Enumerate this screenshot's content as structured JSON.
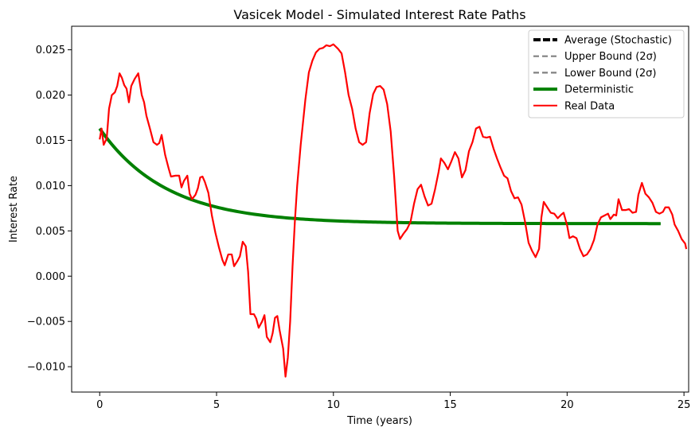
{
  "chart_data": {
    "type": "line",
    "title": "Vasicek Model - Simulated Interest Rate Paths",
    "xlabel": "Time (years)",
    "ylabel": "Interest Rate",
    "xlim": [
      -1.2,
      25.2
    ],
    "ylim": [
      -0.0128,
      0.0276
    ],
    "xticks": [
      0,
      5,
      10,
      15,
      20,
      25
    ],
    "xtick_labels": [
      "0",
      "5",
      "10",
      "15",
      "20",
      "25"
    ],
    "yticks": [
      -0.01,
      -0.005,
      0.0,
      0.005,
      0.01,
      0.015,
      0.02,
      0.025
    ],
    "ytick_labels": [
      "−0.010",
      "−0.005",
      "0.000",
      "0.005",
      "0.010",
      "0.015",
      "0.020",
      "0.025"
    ],
    "grid": false,
    "legend_position": "top-right",
    "deterministic": {
      "r0": 0.0163,
      "theta": 0.0058,
      "kappa": 0.35,
      "t_end": 24
    },
    "series": [
      {
        "name": "Average (Stochastic)",
        "color": "#000000",
        "style": "dashed",
        "role": "average"
      },
      {
        "name": "Upper Bound (2σ)",
        "color": "#808080",
        "style": "dashed",
        "role": "upper"
      },
      {
        "name": "Lower Bound (2σ)",
        "color": "#808080",
        "style": "dashed",
        "role": "lower"
      },
      {
        "name": "Deterministic",
        "color": "#008000",
        "style": "solid",
        "role": "deterministic"
      },
      {
        "name": "Real Data",
        "color": "#ff0000",
        "style": "solid",
        "role": "data",
        "points": [
          [
            0.0,
            0.0151
          ],
          [
            0.08,
            0.0163
          ],
          [
            0.17,
            0.0145
          ],
          [
            0.3,
            0.0152
          ],
          [
            0.4,
            0.0185
          ],
          [
            0.52,
            0.02
          ],
          [
            0.65,
            0.0203
          ],
          [
            0.75,
            0.021
          ],
          [
            0.85,
            0.0224
          ],
          [
            0.95,
            0.0219
          ],
          [
            1.05,
            0.0211
          ],
          [
            1.15,
            0.0207
          ],
          [
            1.25,
            0.0192
          ],
          [
            1.35,
            0.021
          ],
          [
            1.5,
            0.0218
          ],
          [
            1.65,
            0.0224
          ],
          [
            1.8,
            0.02
          ],
          [
            1.9,
            0.0192
          ],
          [
            2.0,
            0.0177
          ],
          [
            2.15,
            0.0163
          ],
          [
            2.3,
            0.0148
          ],
          [
            2.45,
            0.0145
          ],
          [
            2.55,
            0.0147
          ],
          [
            2.65,
            0.0156
          ],
          [
            2.8,
            0.0134
          ],
          [
            2.95,
            0.0119
          ],
          [
            3.05,
            0.011
          ],
          [
            3.25,
            0.0111
          ],
          [
            3.4,
            0.0111
          ],
          [
            3.5,
            0.0098
          ],
          [
            3.6,
            0.0105
          ],
          [
            3.75,
            0.0111
          ],
          [
            3.85,
            0.0091
          ],
          [
            3.95,
            0.0085
          ],
          [
            4.1,
            0.009
          ],
          [
            4.2,
            0.0097
          ],
          [
            4.3,
            0.0109
          ],
          [
            4.4,
            0.011
          ],
          [
            4.5,
            0.0104
          ],
          [
            4.65,
            0.0092
          ],
          [
            4.8,
            0.0067
          ],
          [
            4.95,
            0.0048
          ],
          [
            5.1,
            0.0032
          ],
          [
            5.25,
            0.0018
          ],
          [
            5.35,
            0.0012
          ],
          [
            5.5,
            0.0024
          ],
          [
            5.65,
            0.0024
          ],
          [
            5.75,
            0.0011
          ],
          [
            5.9,
            0.0017
          ],
          [
            6.0,
            0.0022
          ],
          [
            6.12,
            0.0038
          ],
          [
            6.25,
            0.0033
          ],
          [
            6.35,
            0.0005
          ],
          [
            6.45,
            -0.0042
          ],
          [
            6.6,
            -0.0042
          ],
          [
            6.7,
            -0.0047
          ],
          [
            6.8,
            -0.0057
          ],
          [
            6.95,
            -0.005
          ],
          [
            7.05,
            -0.0043
          ],
          [
            7.15,
            -0.0067
          ],
          [
            7.3,
            -0.0073
          ],
          [
            7.4,
            -0.0063
          ],
          [
            7.5,
            -0.0046
          ],
          [
            7.6,
            -0.0044
          ],
          [
            7.7,
            -0.006
          ],
          [
            7.85,
            -0.008
          ],
          [
            7.95,
            -0.0111
          ],
          [
            8.05,
            -0.009
          ],
          [
            8.15,
            -0.005
          ],
          [
            8.25,
            0.001
          ],
          [
            8.35,
            0.006
          ],
          [
            8.45,
            0.01
          ],
          [
            8.6,
            0.0145
          ],
          [
            8.8,
            0.0195
          ],
          [
            8.95,
            0.0225
          ],
          [
            9.1,
            0.0238
          ],
          [
            9.25,
            0.0247
          ],
          [
            9.4,
            0.0251
          ],
          [
            9.55,
            0.0252
          ],
          [
            9.7,
            0.0255
          ],
          [
            9.85,
            0.0254
          ],
          [
            10.0,
            0.0256
          ],
          [
            10.2,
            0.0251
          ],
          [
            10.35,
            0.0246
          ],
          [
            10.5,
            0.0225
          ],
          [
            10.65,
            0.02
          ],
          [
            10.8,
            0.0185
          ],
          [
            10.95,
            0.0163
          ],
          [
            11.1,
            0.0148
          ],
          [
            11.25,
            0.0145
          ],
          [
            11.4,
            0.0148
          ],
          [
            11.55,
            0.018
          ],
          [
            11.7,
            0.0201
          ],
          [
            11.85,
            0.0209
          ],
          [
            12.0,
            0.021
          ],
          [
            12.15,
            0.0206
          ],
          [
            12.3,
            0.019
          ],
          [
            12.45,
            0.016
          ],
          [
            12.6,
            0.011
          ],
          [
            12.75,
            0.005
          ],
          [
            12.85,
            0.0041
          ],
          [
            13.0,
            0.0047
          ],
          [
            13.15,
            0.0052
          ],
          [
            13.3,
            0.006
          ],
          [
            13.45,
            0.008
          ],
          [
            13.6,
            0.0096
          ],
          [
            13.75,
            0.0101
          ],
          [
            13.9,
            0.0088
          ],
          [
            14.05,
            0.0078
          ],
          [
            14.2,
            0.008
          ],
          [
            14.35,
            0.0096
          ],
          [
            14.5,
            0.0115
          ],
          [
            14.6,
            0.013
          ],
          [
            14.75,
            0.0125
          ],
          [
            14.9,
            0.0118
          ],
          [
            15.05,
            0.0127
          ],
          [
            15.2,
            0.0137
          ],
          [
            15.35,
            0.013
          ],
          [
            15.5,
            0.0109
          ],
          [
            15.65,
            0.0117
          ],
          [
            15.8,
            0.0138
          ],
          [
            15.95,
            0.0148
          ],
          [
            16.1,
            0.0163
          ],
          [
            16.25,
            0.0165
          ],
          [
            16.4,
            0.0154
          ],
          [
            16.55,
            0.0153
          ],
          [
            16.7,
            0.0154
          ],
          [
            16.85,
            0.0141
          ],
          [
            17.0,
            0.013
          ],
          [
            17.15,
            0.012
          ],
          [
            17.3,
            0.0111
          ],
          [
            17.45,
            0.0108
          ],
          [
            17.6,
            0.0094
          ],
          [
            17.75,
            0.0086
          ],
          [
            17.9,
            0.0087
          ],
          [
            18.05,
            0.0079
          ],
          [
            18.2,
            0.006
          ],
          [
            18.35,
            0.0037
          ],
          [
            18.5,
            0.0028
          ],
          [
            18.65,
            0.0021
          ],
          [
            18.8,
            0.003
          ],
          [
            18.9,
            0.0065
          ],
          [
            19.0,
            0.0082
          ],
          [
            19.15,
            0.0076
          ],
          [
            19.3,
            0.007
          ],
          [
            19.45,
            0.0069
          ],
          [
            19.6,
            0.0064
          ],
          [
            19.75,
            0.0068
          ],
          [
            19.85,
            0.007
          ],
          [
            20.0,
            0.0056
          ],
          [
            20.1,
            0.0042
          ],
          [
            20.25,
            0.0044
          ],
          [
            20.4,
            0.0042
          ],
          [
            20.55,
            0.003
          ],
          [
            20.7,
            0.0022
          ],
          [
            20.85,
            0.0024
          ],
          [
            21.0,
            0.003
          ],
          [
            21.15,
            0.004
          ],
          [
            21.3,
            0.0057
          ],
          [
            21.45,
            0.0065
          ],
          [
            21.6,
            0.0067
          ],
          [
            21.75,
            0.0069
          ],
          [
            21.85,
            0.0063
          ],
          [
            22.0,
            0.0068
          ],
          [
            22.1,
            0.0067
          ],
          [
            22.2,
            0.0085
          ],
          [
            22.35,
            0.0073
          ],
          [
            22.5,
            0.0073
          ],
          [
            22.65,
            0.0074
          ],
          [
            22.8,
            0.007
          ],
          [
            22.95,
            0.0071
          ],
          [
            23.05,
            0.009
          ],
          [
            23.2,
            0.0103
          ],
          [
            23.35,
            0.0091
          ],
          [
            23.5,
            0.0087
          ],
          [
            23.65,
            0.0081
          ],
          [
            23.8,
            0.0071
          ],
          [
            23.95,
            0.0069
          ],
          [
            24.1,
            0.0071
          ],
          [
            24.2,
            0.0076
          ],
          [
            24.35,
            0.0076
          ],
          [
            24.5,
            0.0068
          ],
          [
            24.6,
            0.0057
          ],
          [
            24.75,
            0.005
          ],
          [
            24.9,
            0.0041
          ],
          [
            25.05,
            0.0036
          ],
          [
            25.1,
            0.003
          ]
        ]
      }
    ]
  }
}
